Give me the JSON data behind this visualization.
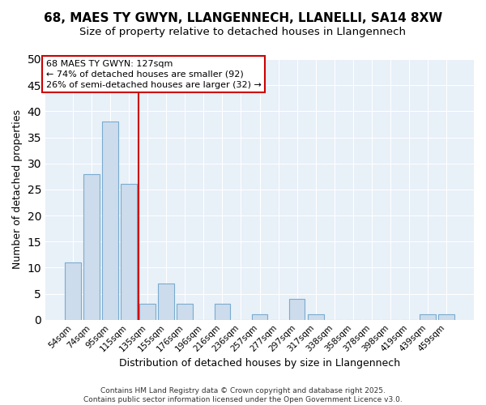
{
  "title": "68, MAES TY GWYN, LLANGENNECH, LLANELLI, SA14 8XW",
  "subtitle": "Size of property relative to detached houses in Llangennech",
  "xlabel": "Distribution of detached houses by size in Llangennech",
  "ylabel": "Number of detached properties",
  "categories": [
    "54sqm",
    "74sqm",
    "95sqm",
    "115sqm",
    "135sqm",
    "155sqm",
    "176sqm",
    "196sqm",
    "216sqm",
    "236sqm",
    "257sqm",
    "277sqm",
    "297sqm",
    "317sqm",
    "338sqm",
    "358sqm",
    "378sqm",
    "398sqm",
    "419sqm",
    "439sqm",
    "459sqm"
  ],
  "values": [
    11,
    28,
    38,
    26,
    3,
    7,
    3,
    0,
    3,
    0,
    1,
    0,
    4,
    1,
    0,
    0,
    0,
    0,
    0,
    1,
    1
  ],
  "bar_color": "#ccdcec",
  "bar_edge_color": "#7aabcf",
  "vline_color": "#cc0000",
  "annotation_text": "68 MAES TY GWYN: 127sqm\n← 74% of detached houses are smaller (92)\n26% of semi-detached houses are larger (32) →",
  "annotation_box_color": "#ffffff",
  "annotation_box_edge": "#cc0000",
  "ylim": [
    0,
    50
  ],
  "yticks": [
    0,
    5,
    10,
    15,
    20,
    25,
    30,
    35,
    40,
    45,
    50
  ],
  "footer_line1": "Contains HM Land Registry data © Crown copyright and database right 2025.",
  "footer_line2": "Contains public sector information licensed under the Open Government Licence v3.0.",
  "bg_color": "#ffffff",
  "plot_bg_color": "#e8f0f8",
  "grid_color": "#ffffff",
  "title_fontsize": 11,
  "subtitle_fontsize": 9.5
}
